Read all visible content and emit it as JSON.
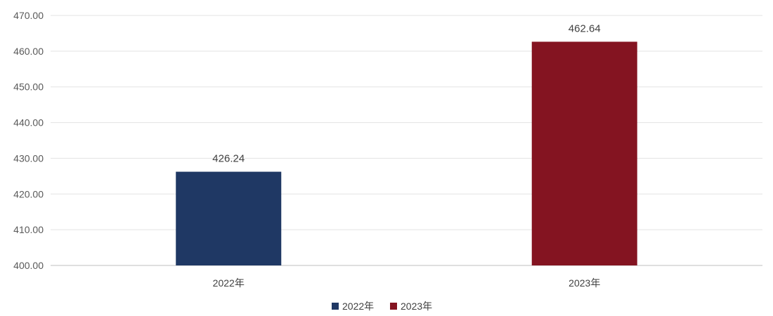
{
  "chart_data": {
    "type": "bar",
    "categories": [
      "2022年",
      "2023年"
    ],
    "values": [
      426.24,
      462.64
    ],
    "data_labels": [
      "426.24",
      "462.64"
    ],
    "bar_colors": [
      "#1f3864",
      "#841421"
    ],
    "ylim": [
      400,
      470
    ],
    "y_ticks": [
      "400.00",
      "410.00",
      "420.00",
      "430.00",
      "440.00",
      "450.00",
      "460.00",
      "470.00"
    ],
    "grid": true,
    "legend": {
      "placement": "bottom",
      "entries": [
        {
          "label": "2022年",
          "color": "#1f3864"
        },
        {
          "label": "2023年",
          "color": "#841421"
        }
      ]
    },
    "title": "",
    "xlabel": "",
    "ylabel": ""
  }
}
